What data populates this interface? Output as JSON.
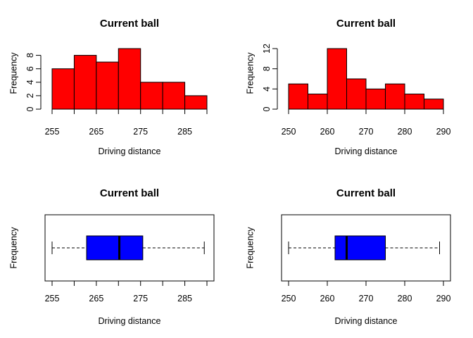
{
  "chart_data": [
    {
      "type": "histogram",
      "title": "Current ball",
      "xlabel": "Driving distance",
      "ylabel": "Frequency",
      "bins": [
        [
          255,
          260
        ],
        [
          260,
          265
        ],
        [
          265,
          270
        ],
        [
          270,
          275
        ],
        [
          275,
          280
        ],
        [
          280,
          285
        ],
        [
          285,
          290
        ]
      ],
      "values": [
        6,
        8,
        7,
        9,
        4,
        4,
        2
      ],
      "xlim": [
        255,
        290
      ],
      "ylim": [
        0,
        9
      ],
      "xticks": [
        255,
        260,
        265,
        270,
        275,
        280,
        285,
        290
      ],
      "xtick_labels": [
        "255",
        "",
        "265",
        "",
        "275",
        "",
        "285",
        ""
      ],
      "yticks": [
        0,
        2,
        4,
        6,
        8
      ],
      "ytick_labels": [
        "0",
        "2",
        "4",
        "6",
        "8"
      ],
      "bar_color": "#ff0000",
      "grid": false
    },
    {
      "type": "histogram",
      "title": "Current ball",
      "xlabel": "Driving distance",
      "ylabel": "Frequency",
      "bins": [
        [
          250,
          255
        ],
        [
          255,
          260
        ],
        [
          260,
          265
        ],
        [
          265,
          270
        ],
        [
          270,
          275
        ],
        [
          275,
          280
        ],
        [
          280,
          285
        ],
        [
          285,
          290
        ]
      ],
      "values": [
        5,
        3,
        12,
        6,
        4,
        5,
        3,
        2
      ],
      "xlim": [
        250,
        290
      ],
      "ylim": [
        0,
        12
      ],
      "xticks": [
        250,
        260,
        270,
        280,
        290
      ],
      "xtick_labels": [
        "250",
        "260",
        "270",
        "280",
        "290"
      ],
      "yticks": [
        0,
        4,
        8,
        12
      ],
      "ytick_labels": [
        "0",
        "4",
        "8",
        "12"
      ],
      "bar_color": "#ff0000",
      "grid": false
    },
    {
      "type": "boxplot",
      "orientation": "horizontal",
      "title": "Current ball",
      "xlabel": "Driving distance",
      "ylabel": "Frequency",
      "stats": {
        "min": 255,
        "q1": 262.8,
        "median": 270.2,
        "q3": 275.5,
        "max": 289.4
      },
      "xlim": [
        255,
        290
      ],
      "xticks": [
        255,
        260,
        265,
        270,
        275,
        280,
        285,
        290
      ],
      "xtick_labels": [
        "255",
        "",
        "265",
        "",
        "275",
        "",
        "285",
        ""
      ],
      "box_color": "#0000ff",
      "grid": false
    },
    {
      "type": "boxplot",
      "orientation": "horizontal",
      "title": "Current ball",
      "xlabel": "Driving distance",
      "ylabel": "Frequency",
      "stats": {
        "min": 250,
        "q1": 262,
        "median": 265,
        "q3": 275,
        "max": 289
      },
      "xlim": [
        250,
        290
      ],
      "xticks": [
        250,
        260,
        270,
        280,
        290
      ],
      "xtick_labels": [
        "250",
        "260",
        "270",
        "280",
        "290"
      ],
      "box_color": "#0000ff",
      "grid": false
    }
  ]
}
